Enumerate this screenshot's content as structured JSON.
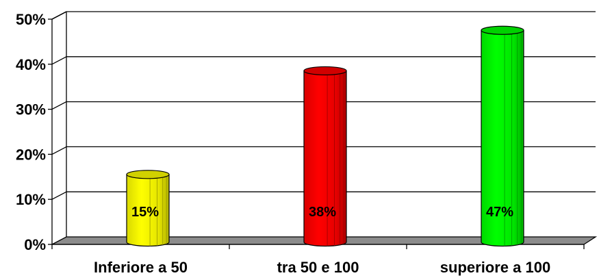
{
  "chart_data": {
    "type": "bar",
    "style": "3d-cylinder",
    "categories": [
      "Inferiore a 50",
      "tra 50 e 100",
      "superiore a 100"
    ],
    "values": [
      15,
      38,
      47
    ],
    "data_labels": [
      "15%",
      "38%",
      "47%"
    ],
    "colors": [
      "#FFFF00",
      "#FF0000",
      "#00FF00"
    ],
    "yticks": [
      "0%",
      "10%",
      "20%",
      "30%",
      "40%",
      "50%"
    ],
    "ylim": [
      0,
      50
    ],
    "grid": true,
    "legend": "none"
  }
}
